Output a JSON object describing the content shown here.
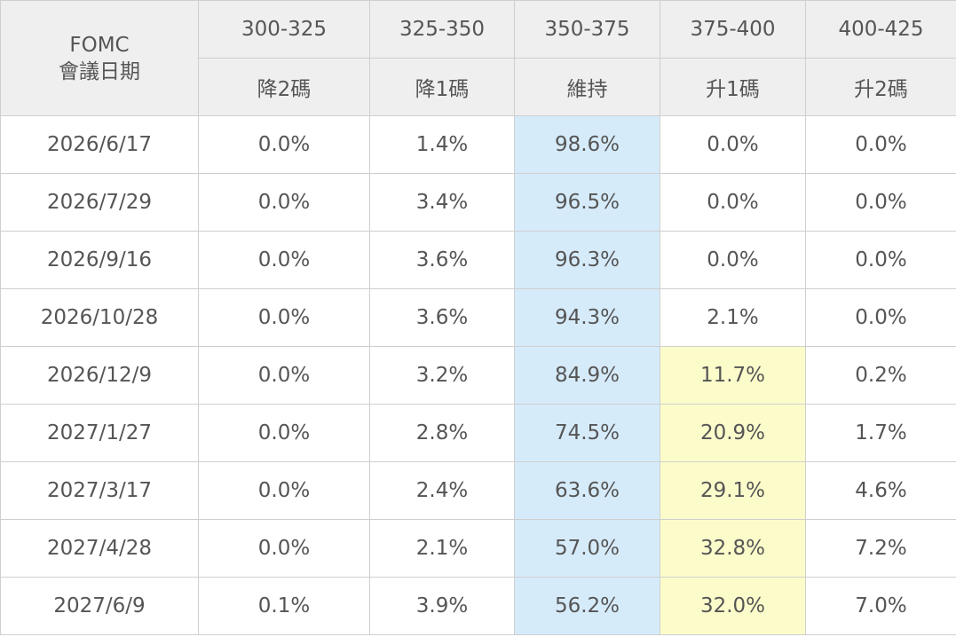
{
  "chart_data": {
    "type": "table",
    "header_corner": [
      "FOMC",
      "會議日期"
    ],
    "rate_ranges": [
      "300-325",
      "325-350",
      "350-375",
      "375-400",
      "400-425"
    ],
    "move_labels": [
      "降2碼",
      "降1碼",
      "維持",
      "升1碼",
      "升2碼"
    ],
    "rows": [
      {
        "date": "2026/6/17",
        "values": [
          "0.0%",
          "1.4%",
          "98.6%",
          "0.0%",
          "0.0%"
        ]
      },
      {
        "date": "2026/7/29",
        "values": [
          "0.0%",
          "3.4%",
          "96.5%",
          "0.0%",
          "0.0%"
        ]
      },
      {
        "date": "2026/9/16",
        "values": [
          "0.0%",
          "3.6%",
          "96.3%",
          "0.0%",
          "0.0%"
        ]
      },
      {
        "date": "2026/10/28",
        "values": [
          "0.0%",
          "3.6%",
          "94.3%",
          "2.1%",
          "0.0%"
        ]
      },
      {
        "date": "2026/12/9",
        "values": [
          "0.0%",
          "3.2%",
          "84.9%",
          "11.7%",
          "0.2%"
        ]
      },
      {
        "date": "2027/1/27",
        "values": [
          "0.0%",
          "2.8%",
          "74.5%",
          "20.9%",
          "1.7%"
        ]
      },
      {
        "date": "2027/3/17",
        "values": [
          "0.0%",
          "2.4%",
          "63.6%",
          "29.1%",
          "4.6%"
        ]
      },
      {
        "date": "2027/4/28",
        "values": [
          "0.0%",
          "2.1%",
          "57.0%",
          "32.8%",
          "7.2%"
        ]
      },
      {
        "date": "2027/6/9",
        "values": [
          "0.1%",
          "3.9%",
          "56.2%",
          "32.0%",
          "7.0%"
        ]
      }
    ],
    "highlighted_yellow_rows": [
      4,
      5,
      6,
      7,
      8
    ],
    "highlight_yellow_column": 3,
    "highlight_blue_column": 2,
    "colors": {
      "header_bg": "#efefef",
      "border": "#cfcfcf",
      "hold_column_bg": "#d6ebfa",
      "hike_highlight_bg": "#fcfccb",
      "text": "#555555"
    }
  }
}
